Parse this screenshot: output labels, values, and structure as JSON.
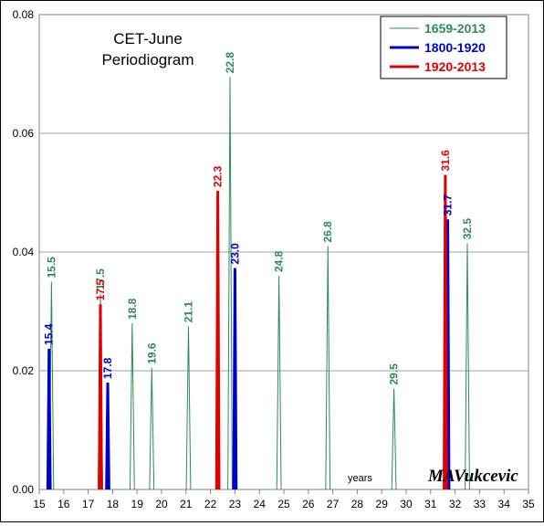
{
  "chart_data": {
    "type": "line",
    "title": [
      "CET-June",
      "Periodiogram"
    ],
    "x_annotation": "years",
    "signature": "MAVukcevic",
    "xlim": [
      15,
      35
    ],
    "ylim": [
      0,
      0.08
    ],
    "x_ticks": [
      "15",
      "16",
      "17",
      "18",
      "19",
      "20",
      "21",
      "22",
      "23",
      "24",
      "25",
      "26",
      "27",
      "28",
      "29",
      "30",
      "31",
      "32",
      "33",
      "34",
      "35"
    ],
    "y_ticks": [
      "0.00",
      "0.02",
      "0.04",
      "0.06",
      "0.08"
    ],
    "grid": "horizontal",
    "legend_position": "top-right",
    "series": [
      {
        "name": "1659-2013",
        "color": "#2e8b57",
        "peaks": [
          {
            "x": 15.5,
            "y": 0.035,
            "label": "15.5"
          },
          {
            "x": 17.5,
            "y": 0.033,
            "label": "17.5"
          },
          {
            "x": 18.8,
            "y": 0.028,
            "label": "18.8"
          },
          {
            "x": 19.6,
            "y": 0.0205,
            "label": "19.6"
          },
          {
            "x": 21.1,
            "y": 0.0275,
            "label": "21.1"
          },
          {
            "x": 22.8,
            "y": 0.0695,
            "label": "22.8"
          },
          {
            "x": 24.8,
            "y": 0.036,
            "label": "24.8"
          },
          {
            "x": 26.8,
            "y": 0.041,
            "label": "26.8"
          },
          {
            "x": 29.5,
            "y": 0.017,
            "label": "29.5"
          },
          {
            "x": 32.5,
            "y": 0.0415,
            "label": "32.5"
          }
        ]
      },
      {
        "name": "1800-1920",
        "color": "#0000cc",
        "peaks": [
          {
            "x": 15.4,
            "y": 0.0237,
            "label": "15.4"
          },
          {
            "x": 17.8,
            "y": 0.018,
            "label": "17.8"
          },
          {
            "x": 23.0,
            "y": 0.0373,
            "label": "23.0"
          },
          {
            "x": 31.7,
            "y": 0.0455,
            "label": "31.7"
          }
        ]
      },
      {
        "name": "1920-2013",
        "color": "#e00000",
        "peaks": [
          {
            "x": 17.5,
            "y": 0.0312,
            "label": "17.5"
          },
          {
            "x": 22.3,
            "y": 0.0503,
            "label": "22.3"
          },
          {
            "x": 31.6,
            "y": 0.053,
            "label": "31.6"
          }
        ]
      }
    ]
  }
}
